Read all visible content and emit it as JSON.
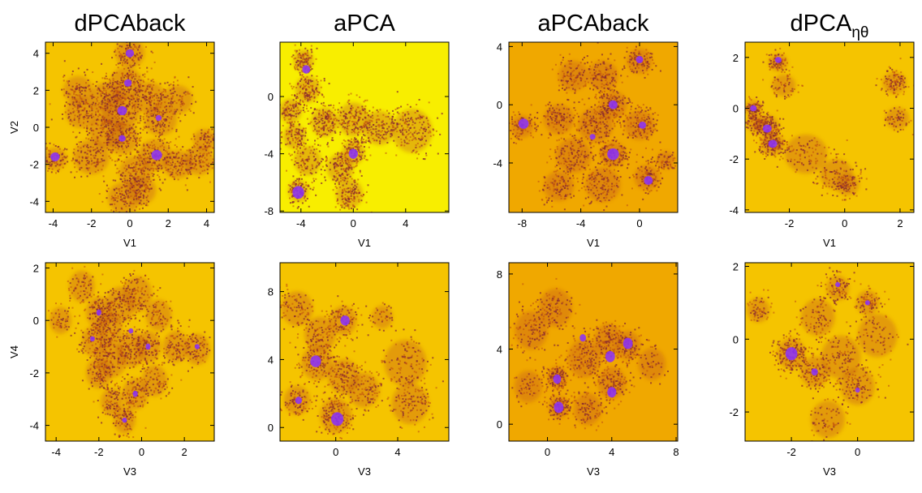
{
  "colors": {
    "background_dark": "#f0a800",
    "background_mid": "#f5c400",
    "background_light": "#f8ee00",
    "density_low": "#c05010",
    "density_mid": "#8a2a30",
    "density_high": "#8a30ff"
  },
  "chart_data": [
    {
      "type": "heatmap",
      "title": "dPCAback",
      "title_sub": "",
      "xlabel": "V1",
      "ylabel": "V2",
      "xlim": [
        -4.4,
        4.4
      ],
      "ylim": [
        -4.6,
        4.6
      ],
      "xticks": [
        -4,
        -2,
        0,
        2,
        4
      ],
      "yticks": [
        -4,
        -2,
        0,
        2,
        4
      ],
      "background": "#f5c400",
      "clusters": [
        {
          "x": 0.0,
          "y": 4.0,
          "spread": 0.45,
          "weight": 120
        },
        {
          "x": -0.2,
          "y": 2.4,
          "spread": 0.5,
          "weight": 160
        },
        {
          "x": -1.2,
          "y": 1.6,
          "spread": 0.5,
          "weight": 120
        },
        {
          "x": 1.0,
          "y": 1.6,
          "spread": 0.5,
          "weight": 120
        },
        {
          "x": -0.5,
          "y": 0.9,
          "spread": 0.6,
          "weight": 180
        },
        {
          "x": -2.7,
          "y": 2.0,
          "spread": 0.45,
          "weight": 90
        },
        {
          "x": -2.5,
          "y": 0.8,
          "spread": 0.5,
          "weight": 110
        },
        {
          "x": 1.6,
          "y": 0.4,
          "spread": 0.5,
          "weight": 110
        },
        {
          "x": -0.4,
          "y": -0.6,
          "spread": 0.5,
          "weight": 120
        },
        {
          "x": 1.3,
          "y": -1.5,
          "spread": 0.5,
          "weight": 140
        },
        {
          "x": -2.0,
          "y": -1.6,
          "spread": 0.55,
          "weight": 130
        },
        {
          "x": -1.2,
          "y": -0.2,
          "spread": 0.55,
          "weight": 120
        },
        {
          "x": 0.3,
          "y": -2.4,
          "spread": 0.5,
          "weight": 130
        },
        {
          "x": -0.3,
          "y": -3.8,
          "spread": 0.5,
          "weight": 110
        },
        {
          "x": 0.6,
          "y": -3.4,
          "spread": 0.45,
          "weight": 90
        },
        {
          "x": -3.9,
          "y": -1.7,
          "spread": 0.35,
          "weight": 90
        },
        {
          "x": 2.5,
          "y": -2.0,
          "spread": 0.45,
          "weight": 100
        },
        {
          "x": 3.6,
          "y": -1.8,
          "spread": 0.45,
          "weight": 100
        },
        {
          "x": 3.9,
          "y": -0.7,
          "spread": 0.35,
          "weight": 70
        },
        {
          "x": 2.5,
          "y": 1.5,
          "spread": 0.45,
          "weight": 80
        }
      ],
      "hot_spots": [
        {
          "x": 0.0,
          "y": 4.0,
          "r": 0.22
        },
        {
          "x": -0.1,
          "y": 2.4,
          "r": 0.2
        },
        {
          "x": -0.4,
          "y": 0.9,
          "r": 0.25
        },
        {
          "x": -0.4,
          "y": -0.6,
          "r": 0.18
        },
        {
          "x": 1.4,
          "y": -1.5,
          "r": 0.28
        },
        {
          "x": 1.5,
          "y": 0.5,
          "r": 0.16
        },
        {
          "x": -3.9,
          "y": -1.6,
          "r": 0.24
        }
      ]
    },
    {
      "type": "heatmap",
      "title": "aPCA",
      "title_sub": "",
      "xlabel": "V1",
      "ylabel": "",
      "xlim": [
        -5.6,
        7.3
      ],
      "ylim": [
        -8.1,
        3.8
      ],
      "xticks": [
        -4,
        0,
        4
      ],
      "yticks": [
        -8,
        -4,
        0
      ],
      "background": "#f8ee00",
      "clusters": [
        {
          "x": -3.8,
          "y": 2.5,
          "spread": 0.45,
          "weight": 110
        },
        {
          "x": -3.5,
          "y": 0.5,
          "spread": 0.55,
          "weight": 140
        },
        {
          "x": -4.8,
          "y": -1.0,
          "spread": 0.5,
          "weight": 100
        },
        {
          "x": -2.2,
          "y": -1.8,
          "spread": 0.6,
          "weight": 150
        },
        {
          "x": 0.0,
          "y": -1.6,
          "spread": 0.7,
          "weight": 160
        },
        {
          "x": 2.0,
          "y": -2.2,
          "spread": 0.7,
          "weight": 140
        },
        {
          "x": 4.5,
          "y": -2.4,
          "spread": 0.9,
          "weight": 170
        },
        {
          "x": 0.0,
          "y": -3.9,
          "spread": 0.5,
          "weight": 120
        },
        {
          "x": -1.0,
          "y": -5.0,
          "spread": 0.6,
          "weight": 120
        },
        {
          "x": -0.3,
          "y": -6.8,
          "spread": 0.6,
          "weight": 130
        },
        {
          "x": -4.2,
          "y": -6.6,
          "spread": 0.45,
          "weight": 110
        },
        {
          "x": -3.5,
          "y": -4.5,
          "spread": 0.6,
          "weight": 100
        },
        {
          "x": -4.5,
          "y": -2.8,
          "spread": 0.5,
          "weight": 90
        }
      ],
      "hot_spots": [
        {
          "x": -3.6,
          "y": 1.9,
          "r": 0.3
        },
        {
          "x": 0.0,
          "y": -4.0,
          "r": 0.35
        },
        {
          "x": -4.2,
          "y": -6.7,
          "r": 0.45
        }
      ]
    },
    {
      "type": "heatmap",
      "title": "aPCAback",
      "title_sub": "",
      "xlabel": "V1",
      "ylabel": "",
      "xlim": [
        -8.9,
        2.6
      ],
      "ylim": [
        -7.4,
        4.3
      ],
      "xticks": [
        -8,
        -4,
        0
      ],
      "yticks": [
        -4,
        0,
        4
      ],
      "background": "#f0a800",
      "clusters": [
        {
          "x": -8.0,
          "y": -1.5,
          "spread": 0.45,
          "weight": 100
        },
        {
          "x": -4.5,
          "y": 2.0,
          "spread": 0.6,
          "weight": 110
        },
        {
          "x": -2.5,
          "y": 2.0,
          "spread": 0.6,
          "weight": 120
        },
        {
          "x": -1.8,
          "y": 0.0,
          "spread": 0.55,
          "weight": 150
        },
        {
          "x": 0.0,
          "y": 3.0,
          "spread": 0.5,
          "weight": 110
        },
        {
          "x": 0.0,
          "y": -1.4,
          "spread": 0.6,
          "weight": 140
        },
        {
          "x": -3.0,
          "y": -1.4,
          "spread": 0.7,
          "weight": 170
        },
        {
          "x": -5.5,
          "y": -1.0,
          "spread": 0.6,
          "weight": 120
        },
        {
          "x": -4.5,
          "y": -3.5,
          "spread": 0.7,
          "weight": 150
        },
        {
          "x": -1.8,
          "y": -3.4,
          "spread": 0.5,
          "weight": 140
        },
        {
          "x": -2.5,
          "y": -5.5,
          "spread": 0.7,
          "weight": 130
        },
        {
          "x": 0.5,
          "y": -5.0,
          "spread": 0.5,
          "weight": 120
        },
        {
          "x": 1.8,
          "y": -3.8,
          "spread": 0.35,
          "weight": 60
        },
        {
          "x": -5.5,
          "y": -5.6,
          "spread": 0.6,
          "weight": 100
        }
      ],
      "hot_spots": [
        {
          "x": -7.9,
          "y": -1.3,
          "r": 0.35
        },
        {
          "x": -1.8,
          "y": 0.0,
          "r": 0.3
        },
        {
          "x": 0.0,
          "y": 3.1,
          "r": 0.25
        },
        {
          "x": -1.8,
          "y": -3.4,
          "r": 0.4
        },
        {
          "x": 0.2,
          "y": -1.4,
          "r": 0.25
        },
        {
          "x": 0.6,
          "y": -5.2,
          "r": 0.3
        },
        {
          "x": -3.2,
          "y": -2.2,
          "r": 0.2
        }
      ]
    },
    {
      "type": "heatmap",
      "title": "dPCA",
      "title_sub": "ηθ",
      "xlabel": "V1",
      "ylabel": "",
      "xlim": [
        -3.6,
        2.5
      ],
      "ylim": [
        -4.1,
        2.6
      ],
      "xticks": [
        -2,
        0,
        2
      ],
      "yticks": [
        -4,
        -2,
        0,
        2
      ],
      "background": "#f5c400",
      "clusters": [
        {
          "x": -2.4,
          "y": 1.8,
          "spread": 0.2,
          "weight": 90
        },
        {
          "x": -2.2,
          "y": 0.9,
          "spread": 0.25,
          "weight": 60
        },
        {
          "x": 1.8,
          "y": 1.0,
          "spread": 0.25,
          "weight": 110
        },
        {
          "x": 1.9,
          "y": -0.4,
          "spread": 0.25,
          "weight": 60
        },
        {
          "x": -3.3,
          "y": 0.0,
          "spread": 0.18,
          "weight": 90
        },
        {
          "x": -3.2,
          "y": -0.6,
          "spread": 0.2,
          "weight": 80
        },
        {
          "x": -2.8,
          "y": -0.7,
          "spread": 0.25,
          "weight": 150
        },
        {
          "x": -2.6,
          "y": -1.4,
          "spread": 0.25,
          "weight": 170
        },
        {
          "x": -1.4,
          "y": -1.8,
          "spread": 0.45,
          "weight": 90
        },
        {
          "x": -0.3,
          "y": -2.6,
          "spread": 0.35,
          "weight": 90
        },
        {
          "x": 0.1,
          "y": -3.0,
          "spread": 0.25,
          "weight": 90
        }
      ],
      "hot_spots": [
        {
          "x": -2.4,
          "y": 1.9,
          "r": 0.12
        },
        {
          "x": -3.3,
          "y": 0.0,
          "r": 0.12
        },
        {
          "x": -2.8,
          "y": -0.8,
          "r": 0.16
        },
        {
          "x": -2.6,
          "y": -1.4,
          "r": 0.16
        }
      ]
    },
    {
      "type": "heatmap",
      "title": "",
      "title_sub": "",
      "xlabel": "V3",
      "ylabel": "V4",
      "xlim": [
        -4.5,
        3.4
      ],
      "ylim": [
        -4.6,
        2.2
      ],
      "xticks": [
        -4,
        -2,
        0,
        2
      ],
      "yticks": [
        -4,
        -2,
        0,
        2
      ],
      "background": "#f5c400",
      "clusters": [
        {
          "x": -3.8,
          "y": 0.0,
          "spread": 0.3,
          "weight": 50
        },
        {
          "x": -2.8,
          "y": 1.3,
          "spread": 0.35,
          "weight": 70
        },
        {
          "x": -2.0,
          "y": 0.3,
          "spread": 0.35,
          "weight": 120
        },
        {
          "x": -1.0,
          "y": 0.6,
          "spread": 0.4,
          "weight": 120
        },
        {
          "x": -0.2,
          "y": 1.0,
          "spread": 0.4,
          "weight": 100
        },
        {
          "x": -1.5,
          "y": -0.3,
          "spread": 0.35,
          "weight": 110
        },
        {
          "x": -2.2,
          "y": -0.8,
          "spread": 0.35,
          "weight": 100
        },
        {
          "x": -1.4,
          "y": -1.5,
          "spread": 0.4,
          "weight": 120
        },
        {
          "x": -0.5,
          "y": -1.1,
          "spread": 0.4,
          "weight": 110
        },
        {
          "x": 0.3,
          "y": -1.0,
          "spread": 0.35,
          "weight": 100
        },
        {
          "x": -2.0,
          "y": -2.0,
          "spread": 0.35,
          "weight": 90
        },
        {
          "x": -0.3,
          "y": -2.8,
          "spread": 0.35,
          "weight": 100
        },
        {
          "x": -1.4,
          "y": -3.1,
          "spread": 0.3,
          "weight": 80
        },
        {
          "x": -0.8,
          "y": -3.8,
          "spread": 0.3,
          "weight": 90
        },
        {
          "x": 0.6,
          "y": -2.3,
          "spread": 0.35,
          "weight": 80
        },
        {
          "x": 1.6,
          "y": -1.0,
          "spread": 0.35,
          "weight": 90
        },
        {
          "x": 2.6,
          "y": -1.1,
          "spread": 0.35,
          "weight": 90
        },
        {
          "x": 0.8,
          "y": 0.2,
          "spread": 0.35,
          "weight": 70
        }
      ],
      "hot_spots": [
        {
          "x": -2.0,
          "y": 0.3,
          "r": 0.12
        },
        {
          "x": -0.5,
          "y": -0.4,
          "r": 0.1
        },
        {
          "x": 0.3,
          "y": -1.0,
          "r": 0.12
        },
        {
          "x": -0.3,
          "y": -2.8,
          "r": 0.12
        },
        {
          "x": -0.8,
          "y": -3.8,
          "r": 0.1
        },
        {
          "x": 2.6,
          "y": -1.0,
          "r": 0.1
        },
        {
          "x": -2.3,
          "y": -0.7,
          "r": 0.1
        }
      ]
    },
    {
      "type": "heatmap",
      "title": "",
      "title_sub": "",
      "xlabel": "V3",
      "ylabel": "",
      "xlim": [
        -3.6,
        7.3
      ],
      "ylim": [
        -0.8,
        9.7
      ],
      "xticks": [
        0,
        4
      ],
      "yticks": [
        0,
        4,
        8
      ],
      "background": "#f5c400",
      "clusters": [
        {
          "x": -2.5,
          "y": 7.0,
          "spread": 0.6,
          "weight": 90
        },
        {
          "x": -1.0,
          "y": 5.5,
          "spread": 0.6,
          "weight": 100
        },
        {
          "x": 0.5,
          "y": 6.3,
          "spread": 0.5,
          "weight": 120
        },
        {
          "x": -1.2,
          "y": 3.8,
          "spread": 0.6,
          "weight": 150
        },
        {
          "x": 0.5,
          "y": 3.0,
          "spread": 0.6,
          "weight": 120
        },
        {
          "x": 1.8,
          "y": 2.2,
          "spread": 0.6,
          "weight": 110
        },
        {
          "x": -2.5,
          "y": 1.6,
          "spread": 0.5,
          "weight": 100
        },
        {
          "x": 0.0,
          "y": 0.7,
          "spread": 0.6,
          "weight": 170
        },
        {
          "x": 4.5,
          "y": 3.8,
          "spread": 0.8,
          "weight": 130
        },
        {
          "x": 4.8,
          "y": 1.4,
          "spread": 0.7,
          "weight": 110
        },
        {
          "x": 3.0,
          "y": 6.5,
          "spread": 0.4,
          "weight": 40
        }
      ],
      "hot_spots": [
        {
          "x": 0.6,
          "y": 6.3,
          "r": 0.3
        },
        {
          "x": -1.3,
          "y": 3.9,
          "r": 0.35
        },
        {
          "x": 0.1,
          "y": 0.5,
          "r": 0.4
        },
        {
          "x": -2.4,
          "y": 1.6,
          "r": 0.22
        }
      ]
    },
    {
      "type": "heatmap",
      "title": "",
      "title_sub": "",
      "xlabel": "V3",
      "ylabel": "",
      "xlim": [
        -2.4,
        8.1
      ],
      "ylim": [
        -0.9,
        8.6
      ],
      "xticks": [
        0,
        4,
        8
      ],
      "yticks": [
        0,
        4,
        8
      ],
      "background": "#f0a800",
      "clusters": [
        {
          "x": -1.0,
          "y": 5.0,
          "spread": 0.6,
          "weight": 110
        },
        {
          "x": 0.5,
          "y": 6.2,
          "spread": 0.6,
          "weight": 110
        },
        {
          "x": 0.6,
          "y": 2.5,
          "spread": 0.35,
          "weight": 150
        },
        {
          "x": 0.7,
          "y": 0.9,
          "spread": 0.35,
          "weight": 120
        },
        {
          "x": 2.3,
          "y": 3.5,
          "spread": 0.6,
          "weight": 140
        },
        {
          "x": 2.5,
          "y": 0.8,
          "spread": 0.5,
          "weight": 100
        },
        {
          "x": 3.8,
          "y": 4.5,
          "spread": 0.5,
          "weight": 140
        },
        {
          "x": 4.0,
          "y": 2.2,
          "spread": 0.5,
          "weight": 150
        },
        {
          "x": 5.0,
          "y": 4.2,
          "spread": 0.45,
          "weight": 100
        },
        {
          "x": 6.5,
          "y": 3.2,
          "spread": 0.5,
          "weight": 50
        },
        {
          "x": -1.2,
          "y": 2.0,
          "spread": 0.5,
          "weight": 60
        }
      ],
      "hot_spots": [
        {
          "x": 0.6,
          "y": 2.4,
          "r": 0.25
        },
        {
          "x": 0.7,
          "y": 0.9,
          "r": 0.3
        },
        {
          "x": 3.9,
          "y": 3.6,
          "r": 0.3
        },
        {
          "x": 4.0,
          "y": 1.7,
          "r": 0.28
        },
        {
          "x": 5.0,
          "y": 4.3,
          "r": 0.3
        },
        {
          "x": 2.2,
          "y": 4.6,
          "r": 0.2
        }
      ]
    },
    {
      "type": "heatmap",
      "title": "",
      "title_sub": "",
      "xlabel": "V3",
      "ylabel": "",
      "xlim": [
        -3.4,
        1.7
      ],
      "ylim": [
        -2.8,
        2.1
      ],
      "xticks": [
        -2,
        0
      ],
      "yticks": [
        -2,
        0,
        2
      ],
      "background": "#f5c400",
      "clusters": [
        {
          "x": -3.0,
          "y": 0.8,
          "spread": 0.2,
          "weight": 60
        },
        {
          "x": -0.6,
          "y": 1.4,
          "spread": 0.2,
          "weight": 90
        },
        {
          "x": 0.3,
          "y": 1.0,
          "spread": 0.2,
          "weight": 80
        },
        {
          "x": -1.2,
          "y": 0.6,
          "spread": 0.3,
          "weight": 90
        },
        {
          "x": -2.0,
          "y": -0.4,
          "spread": 0.25,
          "weight": 190
        },
        {
          "x": -1.3,
          "y": -0.9,
          "spread": 0.25,
          "weight": 120
        },
        {
          "x": -0.5,
          "y": -0.5,
          "spread": 0.35,
          "weight": 110
        },
        {
          "x": 0.0,
          "y": -1.3,
          "spread": 0.3,
          "weight": 110
        },
        {
          "x": -0.9,
          "y": -2.2,
          "spread": 0.3,
          "weight": 70
        },
        {
          "x": 0.6,
          "y": 0.1,
          "spread": 0.35,
          "weight": 70
        }
      ],
      "hot_spots": [
        {
          "x": -2.0,
          "y": -0.4,
          "r": 0.18
        },
        {
          "x": -1.3,
          "y": -0.9,
          "r": 0.1
        },
        {
          "x": -0.6,
          "y": 1.5,
          "r": 0.07
        },
        {
          "x": 0.3,
          "y": 1.0,
          "r": 0.07
        },
        {
          "x": 0.0,
          "y": -1.4,
          "r": 0.07
        }
      ]
    }
  ]
}
